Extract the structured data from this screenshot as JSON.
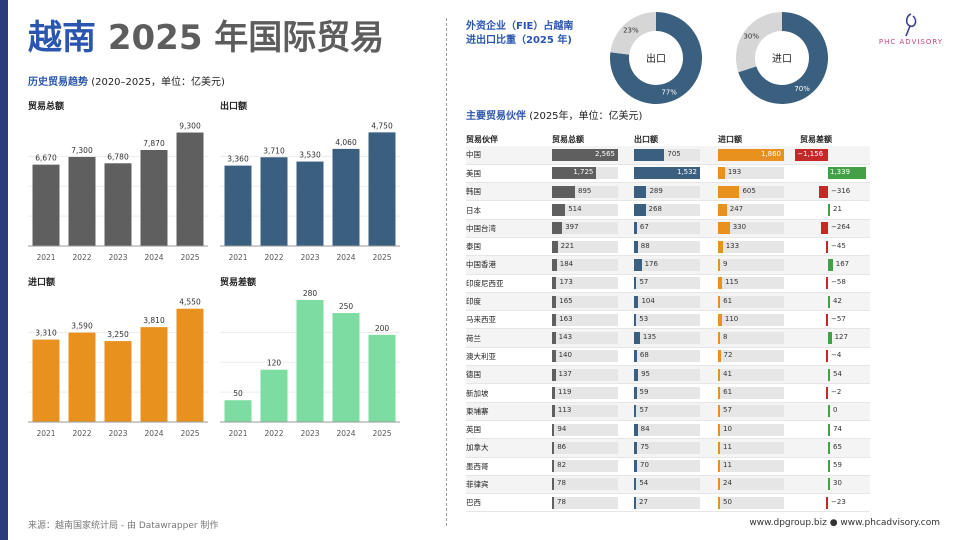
{
  "title": {
    "part1": "越南",
    "part2": "2025 年国际贸易"
  },
  "subtitle": {
    "bold": "历史贸易趋势",
    "rest": "(2020–2025，单位：亿美元)"
  },
  "source": "来源：越南国家统计局 - 由 Datawrapper 制作",
  "footer": "www.dpgroup.biz ● www.phcadvisory.com",
  "logo": {
    "text": "PHC ADVISORY"
  },
  "fie": {
    "title_line1": "外资企业（FIE）占越南",
    "title_line2": "进出口比重（2025 年)"
  },
  "partners_title": {
    "bold": "主要贸易伙伴",
    "rest": "(2025年，单位：亿美元)"
  },
  "colors": {
    "total": "#5f5f5f",
    "export": "#3b5f7e",
    "import": "#e8911e",
    "balance": "#7ddca2",
    "neg": "#c62828",
    "pos": "#43a047",
    "track": "#e6e6e6",
    "donut_light": "#d6d6d6"
  },
  "chart_data": [
    {
      "type": "bar",
      "title": "贸易总额",
      "categories": [
        "2021",
        "2022",
        "2023",
        "2024",
        "2025"
      ],
      "values": [
        6670,
        7300,
        6780,
        7870,
        9300
      ],
      "value_labels": [
        "6,670",
        "7,300",
        "6,780",
        "7,870",
        "9,300"
      ],
      "ylim": [
        0,
        10000
      ],
      "color": "#5f5f5f"
    },
    {
      "type": "bar",
      "title": "出口额",
      "categories": [
        "2021",
        "2022",
        "2023",
        "2024",
        "2025"
      ],
      "values": [
        3360,
        3710,
        3530,
        4060,
        4750
      ],
      "value_labels": [
        "3,360",
        "3,710",
        "3,530",
        "4,060",
        "4,750"
      ],
      "ylim": [
        0,
        5100
      ],
      "color": "#3b5f7e"
    },
    {
      "type": "bar",
      "title": "进口额",
      "categories": [
        "2021",
        "2022",
        "2023",
        "2024",
        "2025"
      ],
      "values": [
        3310,
        3590,
        3250,
        3810,
        4550
      ],
      "value_labels": [
        "3,310",
        "3,590",
        "3,250",
        "3,810",
        "4,550"
      ],
      "ylim": [
        0,
        4900
      ],
      "color": "#e8911e"
    },
    {
      "type": "bar",
      "title": "贸易差额",
      "categories": [
        "2021",
        "2022",
        "2023",
        "2024",
        "2025"
      ],
      "values": [
        50,
        120,
        280,
        250,
        200
      ],
      "value_labels": [
        "50",
        "120",
        "280",
        "250",
        "200"
      ],
      "ylim": [
        0,
        280
      ],
      "color": "#7ddca2"
    },
    {
      "type": "pie",
      "label": "出口",
      "slices": [
        {
          "value": 77,
          "label": "77%"
        },
        {
          "value": 23,
          "label": "23%"
        }
      ]
    },
    {
      "type": "pie",
      "label": "进口",
      "slices": [
        {
          "value": 70,
          "label": "70%"
        },
        {
          "value": 30,
          "label": "30%"
        }
      ]
    },
    {
      "type": "table",
      "columns": [
        "贸易伙伴",
        "贸易总额",
        "出口额",
        "进口额",
        "贸易差额"
      ],
      "rows": [
        {
          "partner": "中国",
          "total": 2565,
          "total_label": "2,565",
          "export": 705,
          "export_label": "705",
          "import": 1860,
          "import_label": "1,860",
          "balance": -1156,
          "balance_label": "−1,156"
        },
        {
          "partner": "美国",
          "total": 1725,
          "total_label": "1,725",
          "export": 1532,
          "export_label": "1,532",
          "import": 193,
          "import_label": "193",
          "balance": 1339,
          "balance_label": "1,339"
        },
        {
          "partner": "韩国",
          "total": 895,
          "total_label": "895",
          "export": 289,
          "export_label": "289",
          "import": 605,
          "import_label": "605",
          "balance": -316,
          "balance_label": "−316"
        },
        {
          "partner": "日本",
          "total": 514,
          "total_label": "514",
          "export": 268,
          "export_label": "268",
          "import": 247,
          "import_label": "247",
          "balance": 21,
          "balance_label": "21"
        },
        {
          "partner": "中国台湾",
          "total": 397,
          "total_label": "397",
          "export": 67,
          "export_label": "67",
          "import": 330,
          "import_label": "330",
          "balance": -264,
          "balance_label": "−264"
        },
        {
          "partner": "泰国",
          "total": 221,
          "total_label": "221",
          "export": 88,
          "export_label": "88",
          "import": 133,
          "import_label": "133",
          "balance": -45,
          "balance_label": "−45"
        },
        {
          "partner": "中国香港",
          "total": 184,
          "total_label": "184",
          "export": 176,
          "export_label": "176",
          "import": 9,
          "import_label": "9",
          "balance": 167,
          "balance_label": "167"
        },
        {
          "partner": "印度尼西亚",
          "total": 173,
          "total_label": "173",
          "export": 57,
          "export_label": "57",
          "import": 115,
          "import_label": "115",
          "balance": -58,
          "balance_label": "−58"
        },
        {
          "partner": "印度",
          "total": 165,
          "total_label": "165",
          "export": 104,
          "export_label": "104",
          "import": 61,
          "import_label": "61",
          "balance": 42,
          "balance_label": "42"
        },
        {
          "partner": "马来西亚",
          "total": 163,
          "total_label": "163",
          "export": 53,
          "export_label": "53",
          "import": 110,
          "import_label": "110",
          "balance": -57,
          "balance_label": "−57"
        },
        {
          "partner": "荷兰",
          "total": 143,
          "total_label": "143",
          "export": 135,
          "export_label": "135",
          "import": 8,
          "import_label": "8",
          "balance": 127,
          "balance_label": "127"
        },
        {
          "partner": "澳大利亚",
          "total": 140,
          "total_label": "140",
          "export": 68,
          "export_label": "68",
          "import": 72,
          "import_label": "72",
          "balance": -4,
          "balance_label": "−4"
        },
        {
          "partner": "德国",
          "total": 137,
          "total_label": "137",
          "export": 95,
          "export_label": "95",
          "import": 41,
          "import_label": "41",
          "balance": 54,
          "balance_label": "54"
        },
        {
          "partner": "新加坡",
          "total": 119,
          "total_label": "119",
          "export": 59,
          "export_label": "59",
          "import": 61,
          "import_label": "61",
          "balance": -2,
          "balance_label": "−2"
        },
        {
          "partner": "柬埔寨",
          "total": 113,
          "total_label": "113",
          "export": 57,
          "export_label": "57",
          "import": 57,
          "import_label": "57",
          "balance": 0,
          "balance_label": "0"
        },
        {
          "partner": "英国",
          "total": 94,
          "total_label": "94",
          "export": 84,
          "export_label": "84",
          "import": 10,
          "import_label": "10",
          "balance": 74,
          "balance_label": "74"
        },
        {
          "partner": "加拿大",
          "total": 86,
          "total_label": "86",
          "export": 75,
          "export_label": "75",
          "import": 11,
          "import_label": "11",
          "balance": 65,
          "balance_label": "65"
        },
        {
          "partner": "墨西哥",
          "total": 82,
          "total_label": "82",
          "export": 70,
          "export_label": "70",
          "import": 11,
          "import_label": "11",
          "balance": 59,
          "balance_label": "59"
        },
        {
          "partner": "菲律宾",
          "total": 78,
          "total_label": "78",
          "export": 54,
          "export_label": "54",
          "import": 24,
          "import_label": "24",
          "balance": 30,
          "balance_label": "30"
        },
        {
          "partner": "巴西",
          "total": 78,
          "total_label": "78",
          "export": 27,
          "export_label": "27",
          "import": 50,
          "import_label": "50",
          "balance": -23,
          "balance_label": "−23"
        }
      ]
    }
  ]
}
